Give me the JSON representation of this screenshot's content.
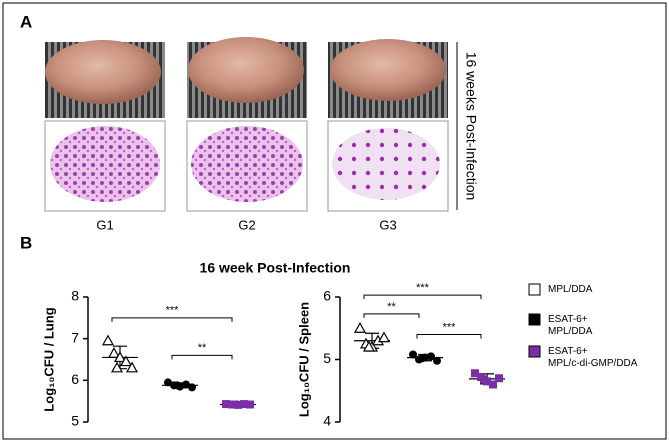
{
  "panel_labels": [
    "A",
    "B"
  ],
  "group_labels": [
    "G1",
    "G2",
    "G3"
  ],
  "side_label": "16 weeks Post-Infection",
  "chart_data": [
    {
      "type": "dot",
      "title": "16 week Post-Infection",
      "ylabel": "Log₁₀CFU / Lung",
      "ylim": [
        5,
        8
      ],
      "yticks": [
        5,
        6,
        7,
        8
      ],
      "series": [
        {
          "name": "MPL/DDA",
          "color": "#ffffff",
          "marker": "triangle-open",
          "values": [
            6.95,
            6.65,
            6.55,
            6.45,
            6.3,
            6.3
          ],
          "mean": 6.55,
          "sd": 0.27
        },
        {
          "name": "ESAT-6+\nMPL/DDA",
          "color": "#000000",
          "marker": "circle",
          "values": [
            5.95,
            5.88,
            5.85,
            5.9,
            5.83,
            5.88
          ],
          "mean": 5.88,
          "sd": 0.06
        },
        {
          "name": "ESAT-6+\nMPL/c-di-GMP/DDA",
          "color": "#7b2fa6",
          "marker": "square",
          "values": [
            5.43,
            5.42,
            5.41,
            5.43,
            5.42,
            5.42
          ],
          "mean": 5.42,
          "sd": 0.03
        }
      ],
      "annotations": [
        {
          "from": 0,
          "to": 2,
          "y": 7.5,
          "label": "***"
        },
        {
          "from": 1,
          "to": 2,
          "y": 6.6,
          "label": "**"
        }
      ]
    },
    {
      "type": "dot",
      "ylabel": "Log₁₀CFU / Spleen",
      "ylim": [
        4,
        6
      ],
      "yticks": [
        4,
        5,
        6
      ],
      "series": [
        {
          "color": "#ffffff",
          "marker": "triangle-open",
          "values": [
            5.5,
            5.25,
            5.2,
            5.3,
            5.35,
            5.2
          ],
          "mean": 5.3,
          "sd": 0.12
        },
        {
          "color": "#000000",
          "marker": "circle",
          "values": [
            5.08,
            5.0,
            5.03,
            5.05,
            4.98,
            5.02
          ],
          "mean": 5.03,
          "sd": 0.05
        },
        {
          "color": "#7b2fa6",
          "marker": "square",
          "values": [
            4.78,
            4.72,
            4.65,
            4.6,
            4.7,
            4.68
          ],
          "mean": 4.69,
          "sd": 0.08
        }
      ],
      "annotations": [
        {
          "from": 0,
          "to": 2,
          "y": 6.03,
          "label": "***"
        },
        {
          "from": 0,
          "to": 1,
          "y": 5.73,
          "label": "**"
        },
        {
          "from": 1,
          "to": 2,
          "y": 5.4,
          "label": "***"
        }
      ]
    }
  ]
}
